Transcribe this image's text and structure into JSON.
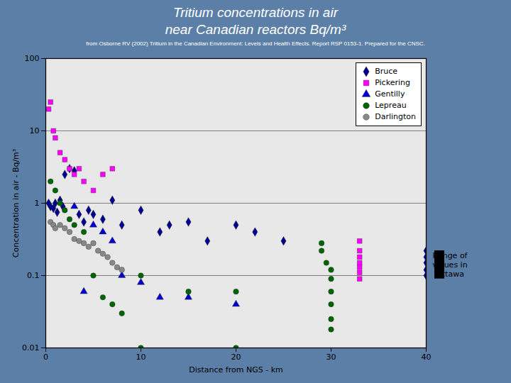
{
  "chart_data": {
    "type": "scatter",
    "title": "Tritium concentrations in air\nnear Canadian reactors Bq/m³",
    "subtitle": "from Osborne RV (2002) Tritium in the Canadian Environment: Levels and Health Effects. Report RSP 0153-1. Prepared for the CNSC.",
    "xlabel": "Distance from NGS - km",
    "ylabel": "Concentration in air - Bq/m³",
    "log": "y",
    "xlim": [
      0,
      40
    ],
    "xticks": [
      0,
      10,
      20,
      30,
      40
    ],
    "ylim": [
      0.01,
      100
    ],
    "yticks": [
      0.01,
      0.1,
      1,
      10,
      100
    ],
    "grid": "y",
    "legend": "upper right",
    "series": [
      {
        "name": "Bruce",
        "color": "#00008b",
        "marker": "diamond",
        "x": [
          0.3,
          0.5,
          0.8,
          1.0,
          1.2,
          1.5,
          1.8,
          2.0,
          2.5,
          3.0,
          3.5,
          4.0,
          4.5,
          5.0,
          6.0,
          7.0,
          8.0,
          10.0,
          12.0,
          13.0,
          15.0,
          17.0,
          20.0,
          22.0,
          25.0,
          40.0,
          40.0,
          40.0,
          40.0,
          40.0
        ],
        "values": [
          1.0,
          0.9,
          0.85,
          1.0,
          0.75,
          1.1,
          0.9,
          2.5,
          3.0,
          2.8,
          0.7,
          0.55,
          0.8,
          0.7,
          0.6,
          1.1,
          0.5,
          0.8,
          0.4,
          0.5,
          0.55,
          0.3,
          0.5,
          0.4,
          0.3,
          0.22,
          0.18,
          0.15,
          0.12,
          0.1
        ]
      },
      {
        "name": "Pickering",
        "color": "#ff00ff",
        "marker": "square",
        "x": [
          0.3,
          0.5,
          0.8,
          1.0,
          1.5,
          2.0,
          2.5,
          3.0,
          3.5,
          4.0,
          5.0,
          6.0,
          7.0,
          33.0,
          33.0,
          33.0,
          33.0,
          33.0,
          33.0,
          33.0
        ],
        "values": [
          20,
          25,
          10,
          8,
          5,
          4,
          3,
          2.5,
          3.0,
          2.0,
          1.5,
          2.5,
          3.0,
          0.3,
          0.22,
          0.18,
          0.15,
          0.13,
          0.11,
          0.09
        ]
      },
      {
        "name": "Gentilly",
        "color": "#0000cd",
        "marker": "triangle",
        "x": [
          3.0,
          4.0,
          5.0,
          6.0,
          7.0,
          8.0,
          10.0,
          12.0,
          15.0,
          20.0
        ],
        "values": [
          0.9,
          0.06,
          0.5,
          0.4,
          0.3,
          0.1,
          0.08,
          0.05,
          0.05,
          0.04
        ]
      },
      {
        "name": "Lepreau",
        "color": "#006400",
        "marker": "circle",
        "x": [
          0.5,
          1.0,
          1.5,
          2.0,
          2.5,
          3.0,
          4.0,
          5.0,
          6.0,
          7.0,
          8.0,
          10.0,
          10.0,
          15.0,
          20.0,
          20.0,
          29.0,
          29.0,
          29.5,
          30.0,
          30.0,
          30.0,
          30.0,
          30.0,
          30.0
        ],
        "values": [
          2.0,
          1.5,
          1.0,
          0.8,
          0.6,
          0.5,
          0.4,
          0.1,
          0.05,
          0.04,
          0.03,
          0.01,
          0.1,
          0.06,
          0.01,
          0.06,
          0.28,
          0.22,
          0.15,
          0.12,
          0.09,
          0.06,
          0.04,
          0.025,
          0.018
        ]
      },
      {
        "name": "Darlington",
        "color": "#888888",
        "marker": "circle",
        "x": [
          0.5,
          0.8,
          1.0,
          1.5,
          2.0,
          2.5,
          3.0,
          3.5,
          4.0,
          4.5,
          5.0,
          5.5,
          6.0,
          6.5,
          7.0,
          7.5,
          8.0
        ],
        "values": [
          0.55,
          0.5,
          0.45,
          0.5,
          0.45,
          0.4,
          0.32,
          0.3,
          0.28,
          0.25,
          0.28,
          0.22,
          0.2,
          0.18,
          0.15,
          0.13,
          0.12
        ]
      }
    ],
    "reference_range": {
      "label": "Range of\nvalues in\nOttawa",
      "low": 0.09,
      "high": 0.22,
      "color": "#000000"
    }
  }
}
